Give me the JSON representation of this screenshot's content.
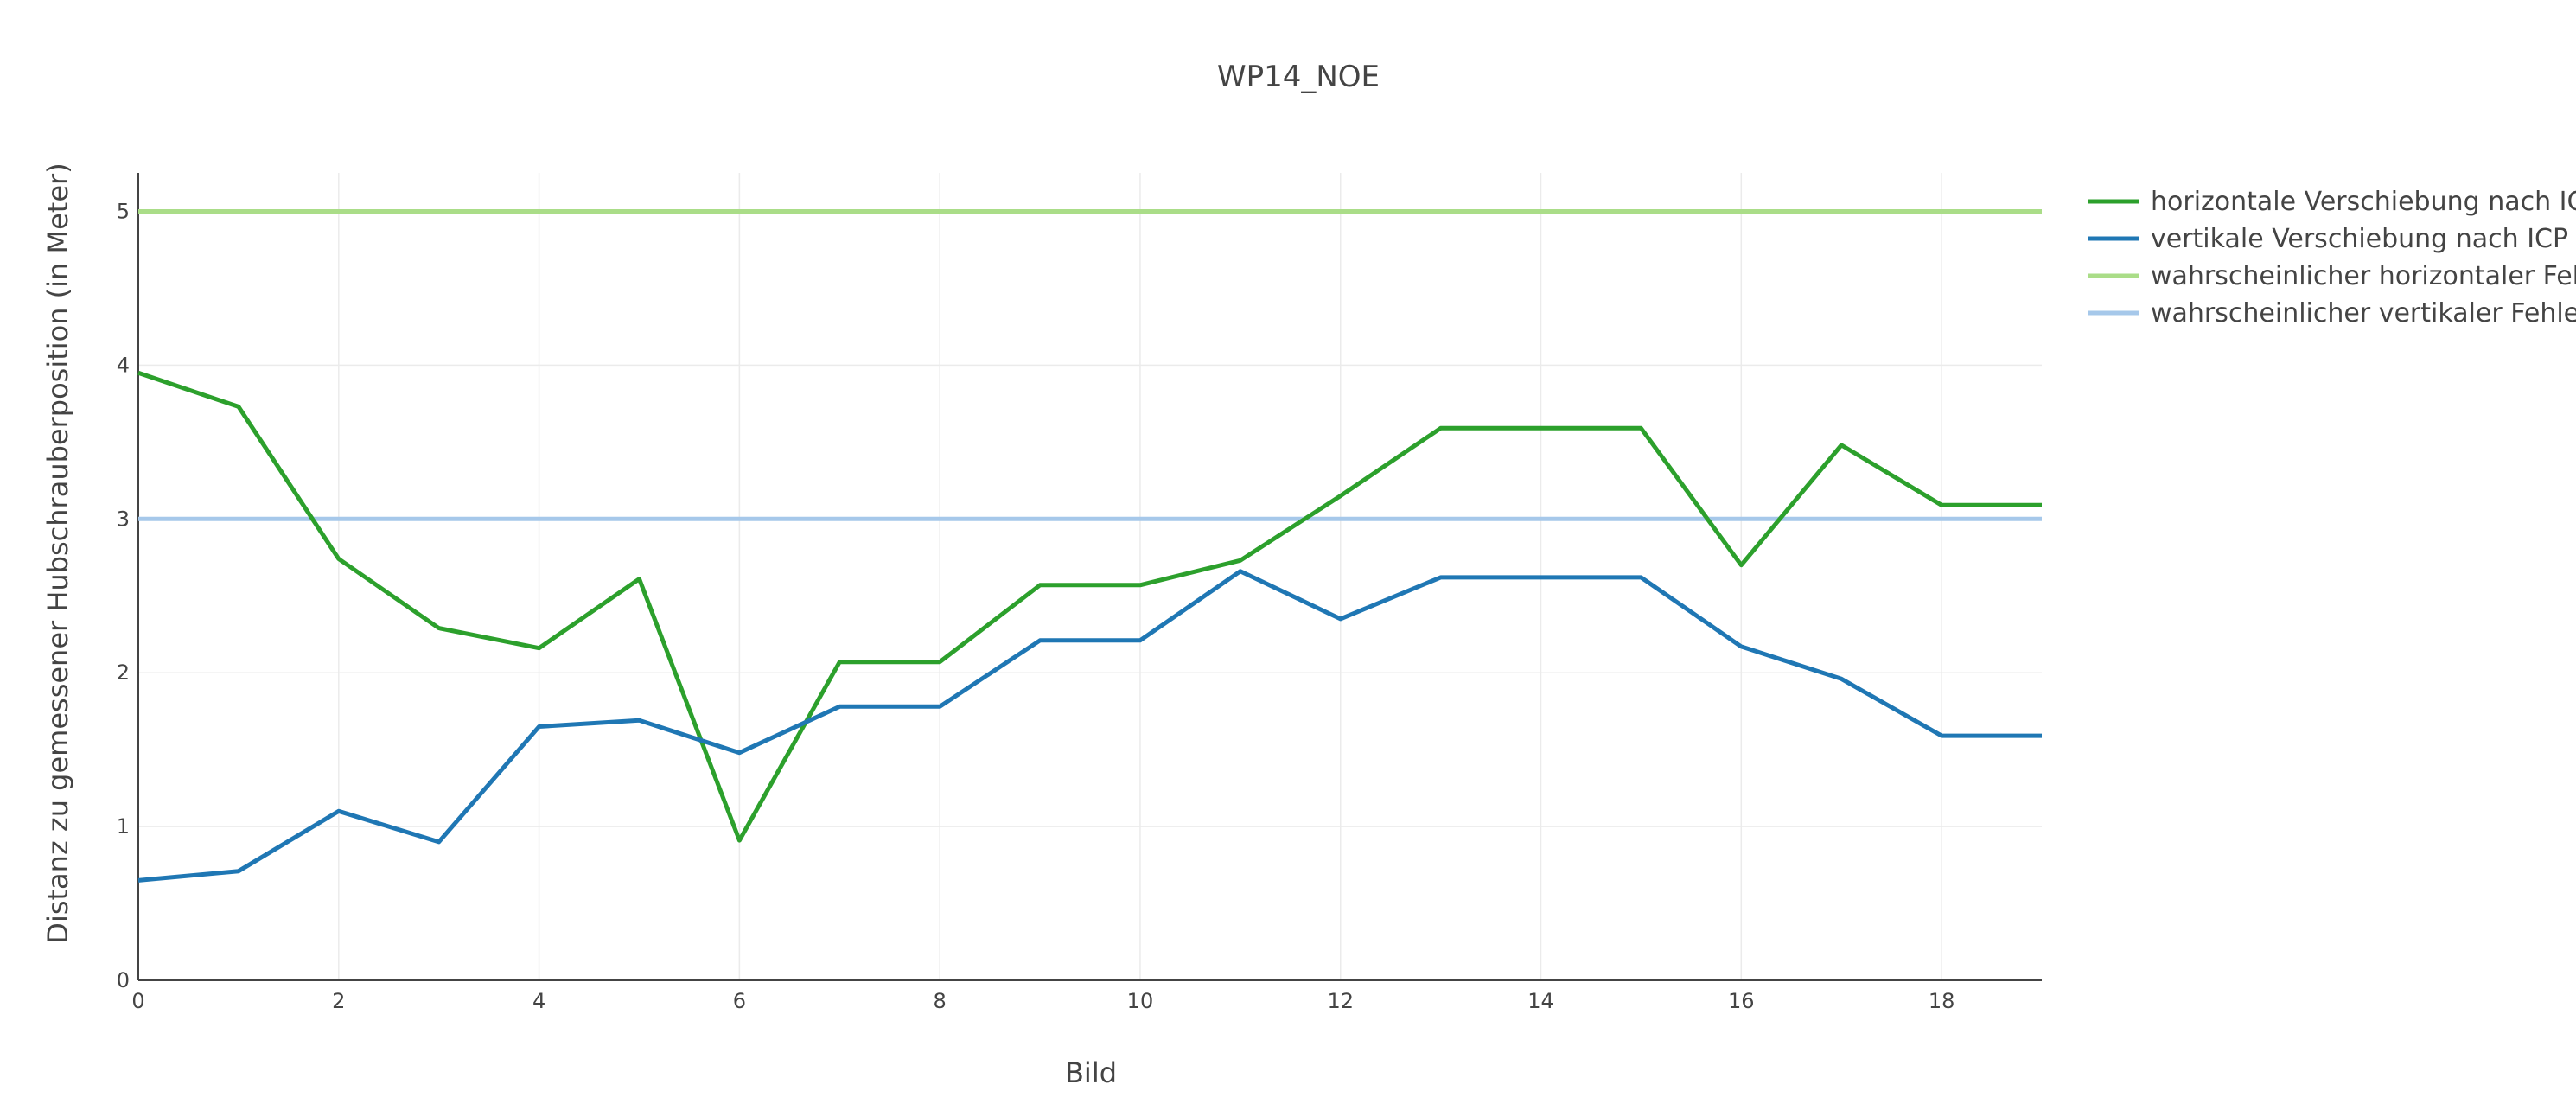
{
  "chart_data": {
    "type": "line",
    "title": "WP14_NOE",
    "xlabel": "Bild",
    "ylabel": "Distanz zu gemessener Hubschrauberposition (in Meter)",
    "xlim": [
      0,
      19
    ],
    "ylim": [
      0,
      5.25
    ],
    "x_ticks": [
      0,
      2,
      4,
      6,
      8,
      10,
      12,
      14,
      16,
      18
    ],
    "y_ticks": [
      0,
      1,
      2,
      3,
      4,
      5
    ],
    "grid": true,
    "legend_position": "top-right-outside",
    "x": [
      0,
      1,
      2,
      3,
      4,
      5,
      6,
      7,
      8,
      9,
      10,
      11,
      12,
      13,
      14,
      15,
      16,
      17,
      18,
      19
    ],
    "series": [
      {
        "name": "horizontale Verschiebung nach ICP",
        "color": "#2ca02c",
        "values": [
          3.95,
          3.73,
          2.74,
          2.29,
          2.16,
          2.61,
          0.91,
          2.07,
          2.07,
          2.57,
          2.57,
          2.73,
          3.15,
          3.59,
          3.59,
          3.59,
          2.7,
          3.48,
          3.09,
          3.09
        ]
      },
      {
        "name": "vertikale Verschiebung nach ICP",
        "color": "#1f77b4",
        "values": [
          0.65,
          0.71,
          1.1,
          0.9,
          1.65,
          1.69,
          1.48,
          1.78,
          1.78,
          2.21,
          2.21,
          2.66,
          2.35,
          2.62,
          2.62,
          2.62,
          2.17,
          1.96,
          1.59,
          1.59
        ]
      },
      {
        "name": "wahrscheinlicher horizontaler Fehler",
        "color": "#aadd88",
        "values": [
          5,
          5,
          5,
          5,
          5,
          5,
          5,
          5,
          5,
          5,
          5,
          5,
          5,
          5,
          5,
          5,
          5,
          5,
          5,
          5
        ]
      },
      {
        "name": "wahrscheinlicher vertikaler Fehler",
        "color": "#a6c8ea",
        "values": [
          3,
          3,
          3,
          3,
          3,
          3,
          3,
          3,
          3,
          3,
          3,
          3,
          3,
          3,
          3,
          3,
          3,
          3,
          3,
          3
        ]
      }
    ]
  }
}
